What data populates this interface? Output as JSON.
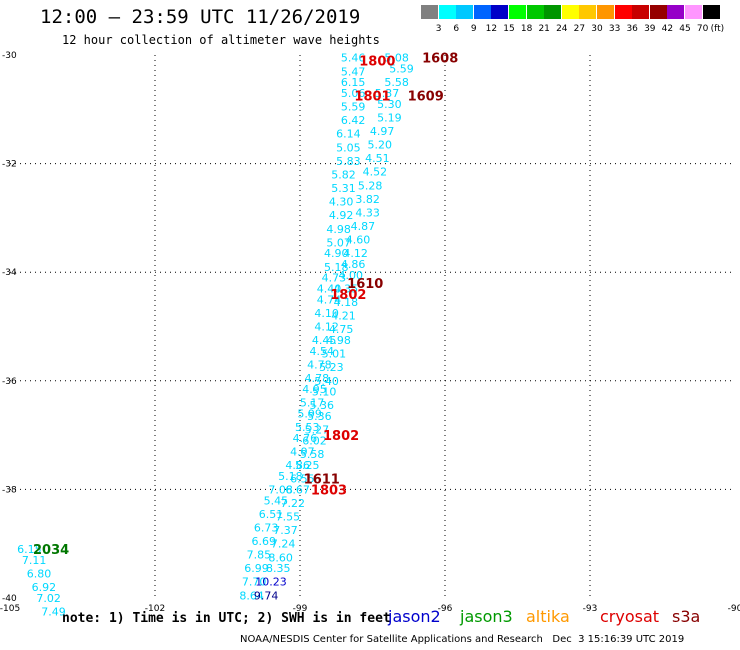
{
  "header": {
    "title": "12:00 – 23:59 UTC 11/26/2019",
    "subtitle": "12 hour collection of altimeter wave heights"
  },
  "colorbar": {
    "labels": [
      "3",
      "6",
      "9",
      "12",
      "15",
      "18",
      "21",
      "24",
      "27",
      "30",
      "33",
      "36",
      "39",
      "42",
      "45",
      "70"
    ],
    "unit": "(ft)",
    "colors": [
      "#808080",
      "#00ffff",
      "#00c8ff",
      "#0064ff",
      "#0000c8",
      "#00ff00",
      "#00c800",
      "#009600",
      "#ffff00",
      "#ffc800",
      "#ff9600",
      "#ff0000",
      "#c80000",
      "#960000",
      "#9600c8",
      "#ff96ff",
      "#000000"
    ]
  },
  "footer": {
    "note": "note: 1) Time is in UTC; 2) SWH is in feet",
    "legend": [
      {
        "label": "jason2",
        "color": "#0000cc"
      },
      {
        "label": "jason3",
        "color": "#009900"
      },
      {
        "label": "altika",
        "color": "#ff9900"
      },
      {
        "label": "cryosat",
        "color": "#dd0000"
      },
      {
        "label": "s3a",
        "color": "#880000"
      }
    ],
    "credit": "NOAA/NESDIS Center for Satellite Applications and Research   Dec  3 15:16:39 UTC 2019"
  },
  "chart_data": {
    "type": "scatter",
    "x_axis": {
      "range": [
        -105,
        -90
      ],
      "ticks": [
        -105,
        -102,
        -99,
        -96,
        -93,
        -90
      ]
    },
    "y_axis": {
      "range": [
        -40,
        -30
      ],
      "ticks": [
        -40,
        -38,
        -36,
        -34,
        -32,
        -30
      ]
    },
    "grid": true,
    "height_colors": {
      "cyan": "#00d8ff",
      "blue": "#0000cc",
      "navy": "#00008b"
    },
    "track_colors": {
      "red": "#dd0000",
      "darkred": "#880000",
      "green": "#007700"
    },
    "swh_points": [
      {
        "x": -97.9,
        "y": -30.05,
        "label": "5.46",
        "c": "cyan"
      },
      {
        "x": -97.0,
        "y": -30.05,
        "label": "5.08",
        "c": "cyan"
      },
      {
        "x": -97.9,
        "y": -30.3,
        "label": "5.47",
        "c": "cyan"
      },
      {
        "x": -96.9,
        "y": -30.25,
        "label": "5.59",
        "c": "cyan"
      },
      {
        "x": -97.9,
        "y": -30.5,
        "label": "6.15",
        "c": "cyan"
      },
      {
        "x": -97.0,
        "y": -30.5,
        "label": "5.58",
        "c": "cyan"
      },
      {
        "x": -97.9,
        "y": -30.7,
        "label": "5.06",
        "c": "cyan"
      },
      {
        "x": -97.2,
        "y": -30.7,
        "label": "5.37",
        "c": "cyan"
      },
      {
        "x": -97.9,
        "y": -30.95,
        "label": "5.59",
        "c": "cyan"
      },
      {
        "x": -97.15,
        "y": -30.9,
        "label": "5.30",
        "c": "cyan"
      },
      {
        "x": -97.9,
        "y": -31.2,
        "label": "6.42",
        "c": "cyan"
      },
      {
        "x": -97.15,
        "y": -31.15,
        "label": "5.19",
        "c": "cyan"
      },
      {
        "x": -98.0,
        "y": -31.45,
        "label": "6.14",
        "c": "cyan"
      },
      {
        "x": -97.3,
        "y": -31.4,
        "label": "4.97",
        "c": "cyan"
      },
      {
        "x": -98.0,
        "y": -31.7,
        "label": "5.05",
        "c": "cyan"
      },
      {
        "x": -97.35,
        "y": -31.65,
        "label": "5.20",
        "c": "cyan"
      },
      {
        "x": -98.0,
        "y": -31.95,
        "label": "5.83",
        "c": "cyan"
      },
      {
        "x": -97.4,
        "y": -31.9,
        "label": "4.51",
        "c": "cyan"
      },
      {
        "x": -98.1,
        "y": -32.2,
        "label": "5.82",
        "c": "cyan"
      },
      {
        "x": -97.45,
        "y": -32.15,
        "label": "4.52",
        "c": "cyan"
      },
      {
        "x": -98.1,
        "y": -32.45,
        "label": "5.31",
        "c": "cyan"
      },
      {
        "x": -97.55,
        "y": -32.4,
        "label": "5.28",
        "c": "cyan"
      },
      {
        "x": -98.15,
        "y": -32.7,
        "label": "4.30",
        "c": "cyan"
      },
      {
        "x": -97.6,
        "y": -32.65,
        "label": "3.82",
        "c": "cyan"
      },
      {
        "x": -98.15,
        "y": -32.95,
        "label": "4.92",
        "c": "cyan"
      },
      {
        "x": -97.6,
        "y": -32.9,
        "label": "4.33",
        "c": "cyan"
      },
      {
        "x": -98.2,
        "y": -33.2,
        "label": "4.98",
        "c": "cyan"
      },
      {
        "x": -97.7,
        "y": -33.15,
        "label": "4.87",
        "c": "cyan"
      },
      {
        "x": -98.2,
        "y": -33.45,
        "label": "5.07",
        "c": "cyan"
      },
      {
        "x": -97.8,
        "y": -33.4,
        "label": "4.60",
        "c": "cyan"
      },
      {
        "x": -98.25,
        "y": -33.65,
        "label": "4.90",
        "c": "cyan"
      },
      {
        "x": -97.85,
        "y": -33.65,
        "label": "4.12",
        "c": "cyan"
      },
      {
        "x": -98.25,
        "y": -33.9,
        "label": "5.18",
        "c": "cyan"
      },
      {
        "x": -97.9,
        "y": -33.85,
        "label": "4.86",
        "c": "cyan"
      },
      {
        "x": -98.3,
        "y": -34.1,
        "label": "4.73",
        "c": "cyan"
      },
      {
        "x": -97.95,
        "y": -34.05,
        "label": "4.00",
        "c": "cyan"
      },
      {
        "x": -98.4,
        "y": -34.3,
        "label": "4.40",
        "c": "cyan"
      },
      {
        "x": -98.05,
        "y": -34.3,
        "label": "4.35",
        "c": "cyan"
      },
      {
        "x": -98.4,
        "y": -34.5,
        "label": "4.74",
        "c": "cyan"
      },
      {
        "x": -98.05,
        "y": -34.55,
        "label": "4.18",
        "c": "cyan"
      },
      {
        "x": -98.45,
        "y": -34.75,
        "label": "4.10",
        "c": "cyan"
      },
      {
        "x": -98.1,
        "y": -34.8,
        "label": "4.21",
        "c": "cyan"
      },
      {
        "x": -98.45,
        "y": -35.0,
        "label": "4.12",
        "c": "cyan"
      },
      {
        "x": -98.15,
        "y": -35.05,
        "label": "4.75",
        "c": "cyan"
      },
      {
        "x": -98.5,
        "y": -35.25,
        "label": "4.45",
        "c": "cyan"
      },
      {
        "x": -98.2,
        "y": -35.25,
        "label": "4.98",
        "c": "cyan"
      },
      {
        "x": -98.55,
        "y": -35.45,
        "label": "4.54",
        "c": "cyan"
      },
      {
        "x": -98.3,
        "y": -35.5,
        "label": "5.01",
        "c": "cyan"
      },
      {
        "x": -98.6,
        "y": -35.7,
        "label": "4.78",
        "c": "cyan"
      },
      {
        "x": -98.35,
        "y": -35.75,
        "label": "5.23",
        "c": "cyan"
      },
      {
        "x": -98.65,
        "y": -35.95,
        "label": "4.78",
        "c": "cyan"
      },
      {
        "x": -98.45,
        "y": -36.0,
        "label": "5.40",
        "c": "cyan"
      },
      {
        "x": -98.7,
        "y": -36.15,
        "label": "4.95",
        "c": "cyan"
      },
      {
        "x": -98.5,
        "y": -36.2,
        "label": "5.10",
        "c": "cyan"
      },
      {
        "x": -98.75,
        "y": -36.4,
        "label": "5.17",
        "c": "cyan"
      },
      {
        "x": -98.55,
        "y": -36.45,
        "label": "5.36",
        "c": "cyan"
      },
      {
        "x": -98.8,
        "y": -36.6,
        "label": "5.99",
        "c": "cyan"
      },
      {
        "x": -98.6,
        "y": -36.65,
        "label": "5.36",
        "c": "cyan"
      },
      {
        "x": -98.85,
        "y": -36.85,
        "label": "5.53",
        "c": "cyan"
      },
      {
        "x": -98.65,
        "y": -36.9,
        "label": "5.27",
        "c": "cyan"
      },
      {
        "x": -98.9,
        "y": -37.05,
        "label": "4.76",
        "c": "cyan"
      },
      {
        "x": -98.7,
        "y": -37.1,
        "label": "6.02",
        "c": "cyan"
      },
      {
        "x": -98.95,
        "y": -37.3,
        "label": "4.97",
        "c": "cyan"
      },
      {
        "x": -98.75,
        "y": -37.35,
        "label": "5.58",
        "c": "cyan"
      },
      {
        "x": -99.05,
        "y": -37.55,
        "label": "4.86",
        "c": "cyan"
      },
      {
        "x": -98.85,
        "y": -37.55,
        "label": "5.25",
        "c": "cyan"
      },
      {
        "x": -99.2,
        "y": -37.75,
        "label": "5.18",
        "c": "cyan"
      },
      {
        "x": -98.95,
        "y": -37.8,
        "label": "6.55",
        "c": "cyan"
      },
      {
        "x": -99.4,
        "y": -38.0,
        "label": "7.08",
        "c": "cyan"
      },
      {
        "x": -99.05,
        "y": -38.0,
        "label": "6.67",
        "c": "cyan"
      },
      {
        "x": -99.5,
        "y": -38.2,
        "label": "5.45",
        "c": "cyan"
      },
      {
        "x": -99.15,
        "y": -38.25,
        "label": "7.22",
        "c": "cyan"
      },
      {
        "x": -99.6,
        "y": -38.45,
        "label": "6.51",
        "c": "cyan"
      },
      {
        "x": -99.25,
        "y": -38.5,
        "label": "7.55",
        "c": "cyan"
      },
      {
        "x": -99.7,
        "y": -38.7,
        "label": "6.73",
        "c": "cyan"
      },
      {
        "x": -99.3,
        "y": -38.75,
        "label": "7.37",
        "c": "cyan"
      },
      {
        "x": -99.75,
        "y": -38.95,
        "label": "6.69",
        "c": "cyan"
      },
      {
        "x": -99.35,
        "y": -39.0,
        "label": "7.24",
        "c": "cyan"
      },
      {
        "x": -99.85,
        "y": -39.2,
        "label": "7.85",
        "c": "cyan"
      },
      {
        "x": -99.4,
        "y": -39.25,
        "label": "8.60",
        "c": "cyan"
      },
      {
        "x": -99.9,
        "y": -39.45,
        "label": "6.99",
        "c": "cyan"
      },
      {
        "x": -99.45,
        "y": -39.45,
        "label": "8.35",
        "c": "cyan"
      },
      {
        "x": -99.95,
        "y": -39.7,
        "label": "7.70",
        "c": "cyan"
      },
      {
        "x": -99.6,
        "y": -39.7,
        "label": "10.23",
        "c": "blue"
      },
      {
        "x": -100.0,
        "y": -39.95,
        "label": "8.64",
        "c": "cyan"
      },
      {
        "x": -99.7,
        "y": -39.95,
        "label": "9.74",
        "c": "navy"
      },
      {
        "x": -104.6,
        "y": -39.1,
        "label": "6.15",
        "c": "cyan"
      },
      {
        "x": -104.5,
        "y": -39.3,
        "label": "7.11",
        "c": "cyan"
      },
      {
        "x": -104.4,
        "y": -39.55,
        "label": "6.80",
        "c": "cyan"
      },
      {
        "x": -104.3,
        "y": -39.8,
        "label": "6.92",
        "c": "cyan"
      },
      {
        "x": -104.2,
        "y": -40.0,
        "label": "7.02",
        "c": "cyan"
      },
      {
        "x": -104.1,
        "y": -40.25,
        "label": "7.49",
        "c": "cyan"
      }
    ],
    "time_labels": [
      {
        "x": -97.4,
        "y": -30.1,
        "label": "1800",
        "c": "red"
      },
      {
        "x": -96.1,
        "y": -30.05,
        "label": "1608",
        "c": "darkred"
      },
      {
        "x": -97.5,
        "y": -30.75,
        "label": "1801",
        "c": "red"
      },
      {
        "x": -96.4,
        "y": -30.75,
        "label": "1609",
        "c": "darkred"
      },
      {
        "x": -97.65,
        "y": -34.2,
        "label": "1610",
        "c": "darkred"
      },
      {
        "x": -98.0,
        "y": -34.4,
        "label": "1802",
        "c": "red"
      },
      {
        "x": -98.15,
        "y": -37.0,
        "label": "1802",
        "c": "red"
      },
      {
        "x": -98.55,
        "y": -37.8,
        "label": "1611",
        "c": "darkred"
      },
      {
        "x": -98.4,
        "y": -38.0,
        "label": "1803",
        "c": "red"
      },
      {
        "x": -104.15,
        "y": -39.1,
        "label": "2034",
        "c": "green"
      }
    ]
  }
}
